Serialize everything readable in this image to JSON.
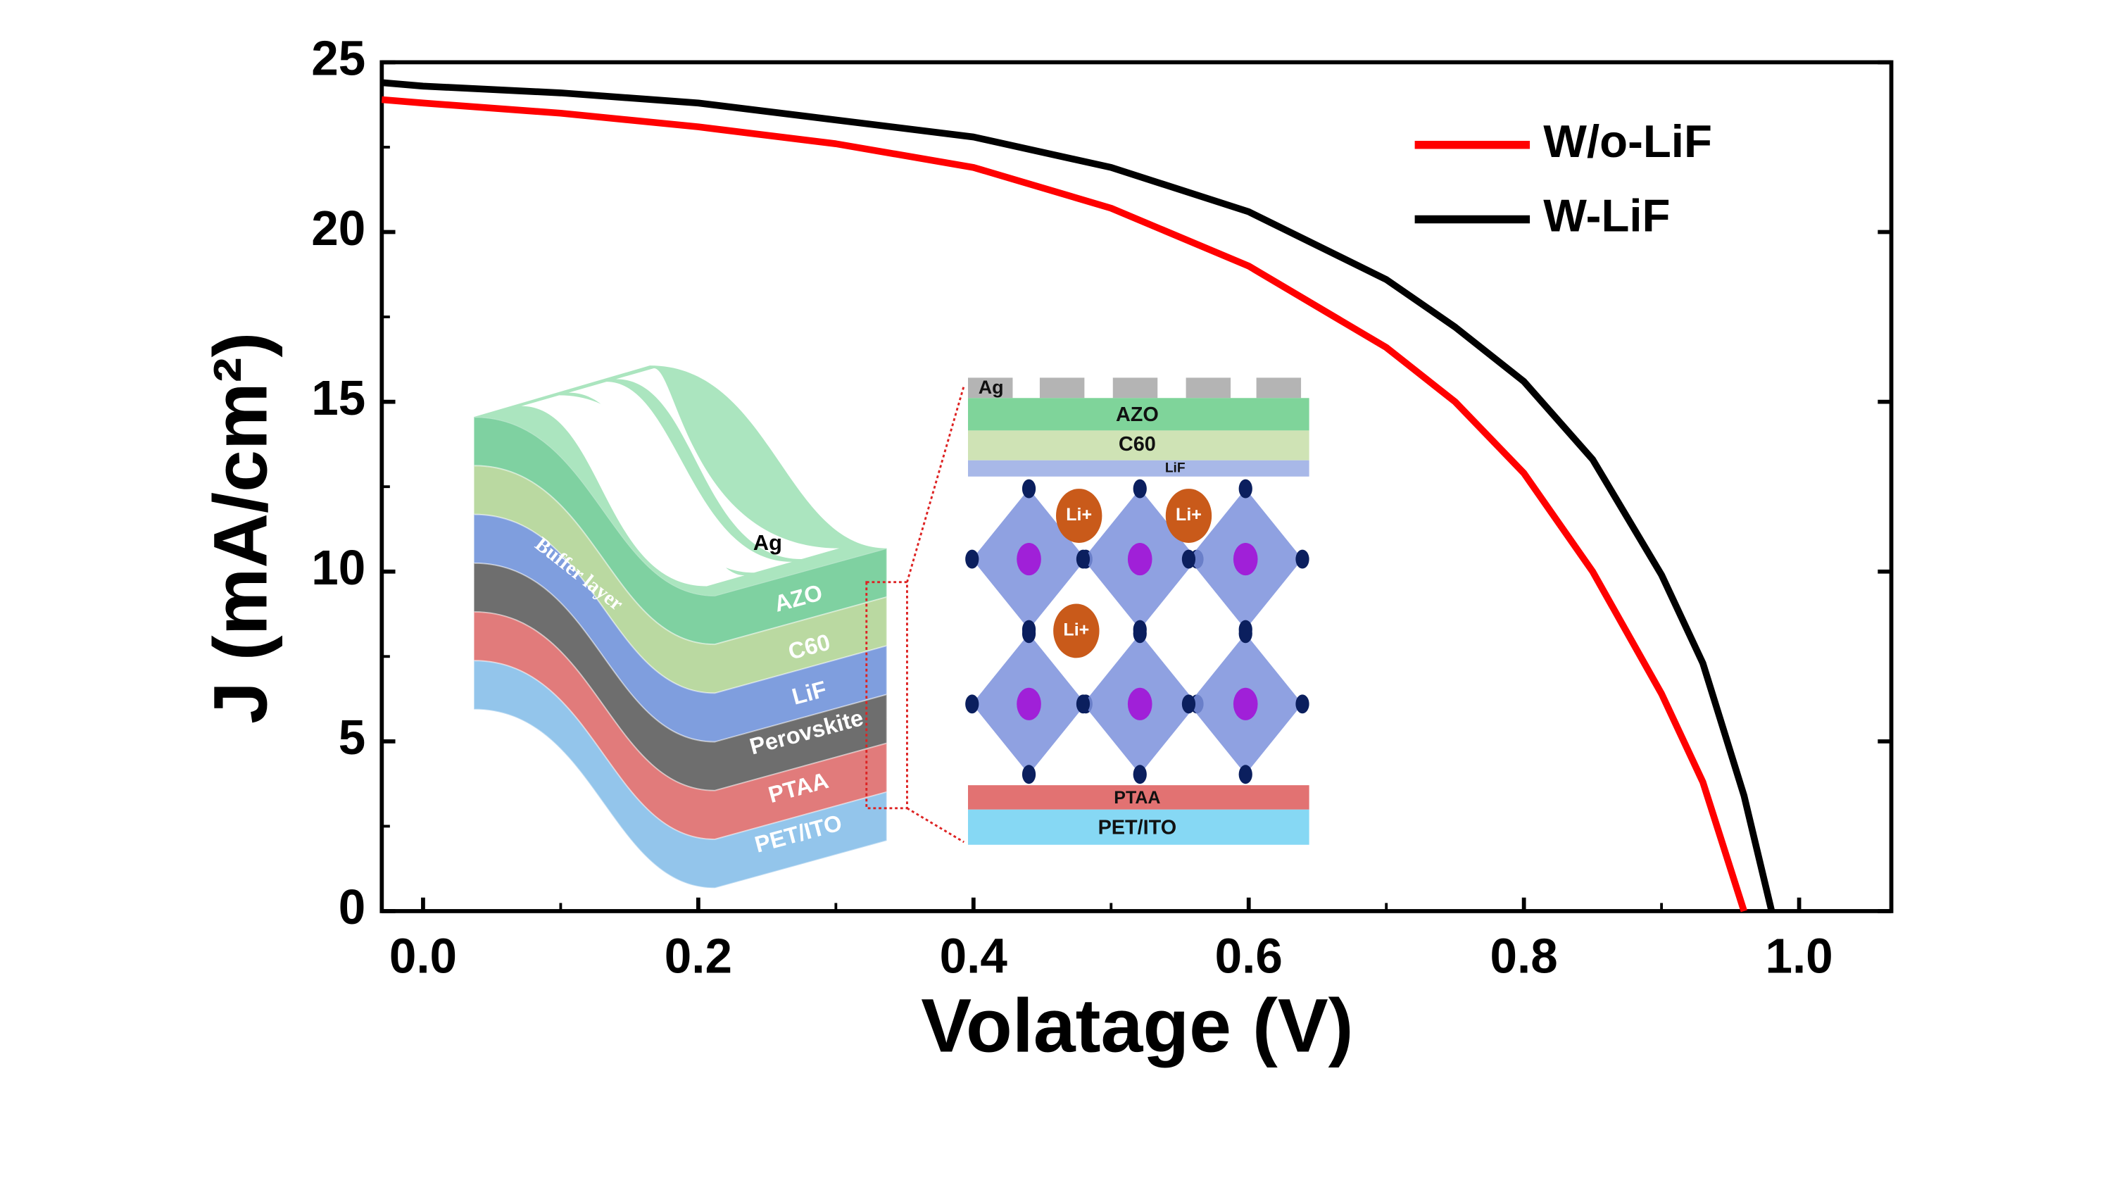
{
  "chart_data": {
    "type": "line",
    "x_label": "Volatage (V)",
    "y_label": "J (mA/cm²)",
    "x": [
      -0.03,
      0,
      0.1,
      0.2,
      0.3,
      0.4,
      0.5,
      0.6,
      0.7,
      0.75,
      0.8,
      0.85,
      0.9,
      0.93,
      0.96,
      0.98
    ],
    "series": [
      {
        "name": "W/o-LiF",
        "color": "#ff0000",
        "values": [
          23.9,
          23.8,
          23.5,
          23.1,
          22.6,
          21.9,
          20.7,
          19.0,
          16.6,
          15.0,
          12.9,
          10.0,
          6.4,
          3.8,
          0,
          null
        ]
      },
      {
        "name": "W-LiF",
        "color": "#000000",
        "values": [
          24.4,
          24.3,
          24.1,
          23.8,
          23.3,
          22.8,
          21.9,
          20.6,
          18.6,
          17.2,
          15.6,
          13.3,
          9.9,
          7.3,
          3.4,
          0
        ]
      }
    ],
    "xlim": [
      -0.03,
      1.067
    ],
    "ylim": [
      0,
      25
    ],
    "xticks": [
      {
        "value": 0,
        "label": "0.0"
      },
      0.2,
      0.4,
      0.6,
      0.8,
      {
        "value": 1,
        "label": "1.0"
      }
    ],
    "xticks_minor": [
      0.1,
      0.3,
      0.5,
      0.7,
      0.9
    ],
    "yticks": [
      0,
      5,
      10,
      15,
      20,
      25
    ],
    "yticks_minor": [
      2.5,
      7.5,
      12.5,
      17.5,
      22.5
    ],
    "legend": "upper right",
    "inset": {
      "left": [
        "Ag",
        "AZO",
        "C60",
        "LiF",
        "Perovskite",
        "PTAA",
        "PET/ITO",
        "Buffer layer"
      ],
      "right": [
        "Ag",
        "AZO",
        "C60",
        "LiF",
        "Li+",
        "PTAA",
        "PET/ITO"
      ]
    }
  }
}
